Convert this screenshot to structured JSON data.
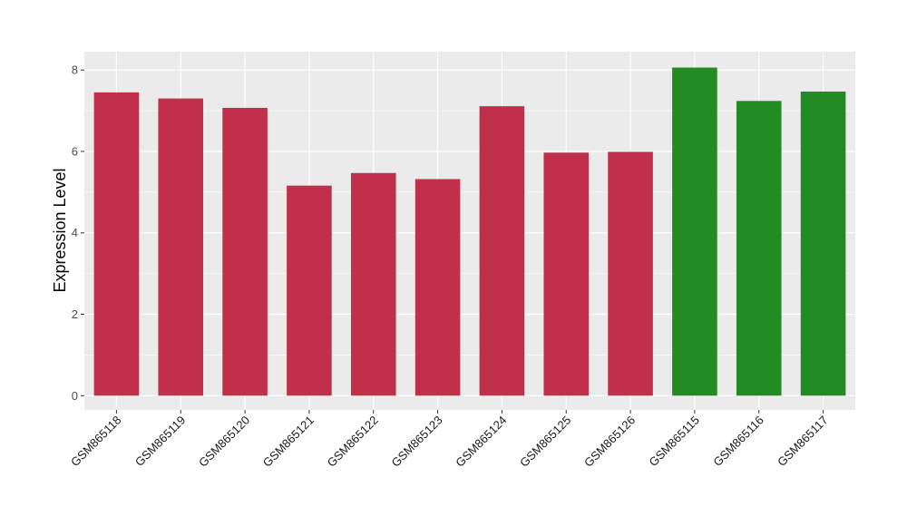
{
  "chart_data": {
    "type": "bar",
    "title": "",
    "xlabel": "",
    "ylabel": "Expression Level",
    "categories": [
      "GSM865118",
      "GSM865119",
      "GSM865120",
      "GSM865121",
      "GSM865122",
      "GSM865123",
      "GSM865124",
      "GSM865125",
      "GSM865126",
      "GSM865115",
      "GSM865116",
      "GSM865117"
    ],
    "values": [
      7.45,
      7.3,
      7.07,
      5.16,
      5.47,
      5.32,
      7.11,
      5.97,
      5.99,
      8.06,
      7.24,
      7.47
    ],
    "bar_colors": [
      "#c1304b",
      "#c1304b",
      "#c1304b",
      "#c1304b",
      "#c1304b",
      "#c1304b",
      "#c1304b",
      "#c1304b",
      "#c1304b",
      "#228b22",
      "#228b22",
      "#228b22"
    ],
    "ylim": [
      -0.35,
      8.45
    ],
    "yticks": [
      0,
      2,
      4,
      6,
      8
    ],
    "grid": true,
    "panel_background": "#ebebeb",
    "gridline_color": "#ffffff",
    "legend": "none"
  }
}
